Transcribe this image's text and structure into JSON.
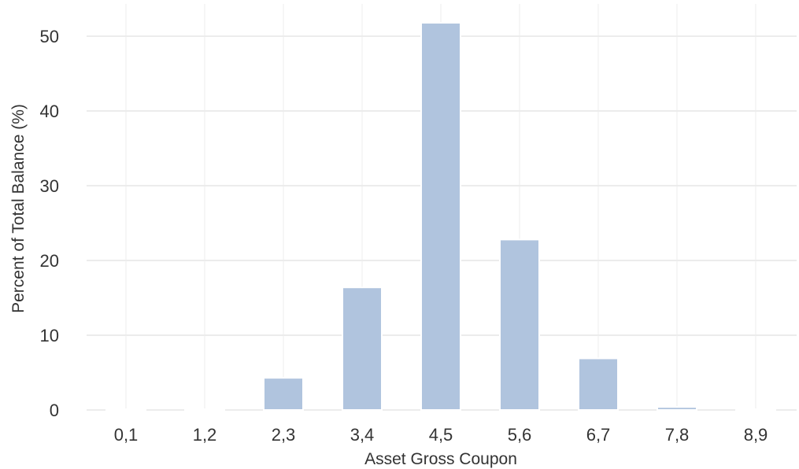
{
  "chart_data": {
    "type": "bar",
    "categories": [
      "0,1",
      "1,2",
      "2,3",
      "3,4",
      "4,5",
      "5,6",
      "6,7",
      "7,8",
      "8,9"
    ],
    "values": [
      0.1,
      0.1,
      4.3,
      16.4,
      51.8,
      22.8,
      6.9,
      0.4,
      0.1
    ],
    "xlabel": "Asset Gross Coupon",
    "ylabel": "Percent of Total Balance (%)",
    "ylim": [
      0,
      55
    ],
    "yticks": [
      0,
      10,
      20,
      30,
      40,
      50
    ],
    "grid": true,
    "bar_color": "#b0c4de",
    "grid_color": "#ececec",
    "text_color": "#333333"
  }
}
